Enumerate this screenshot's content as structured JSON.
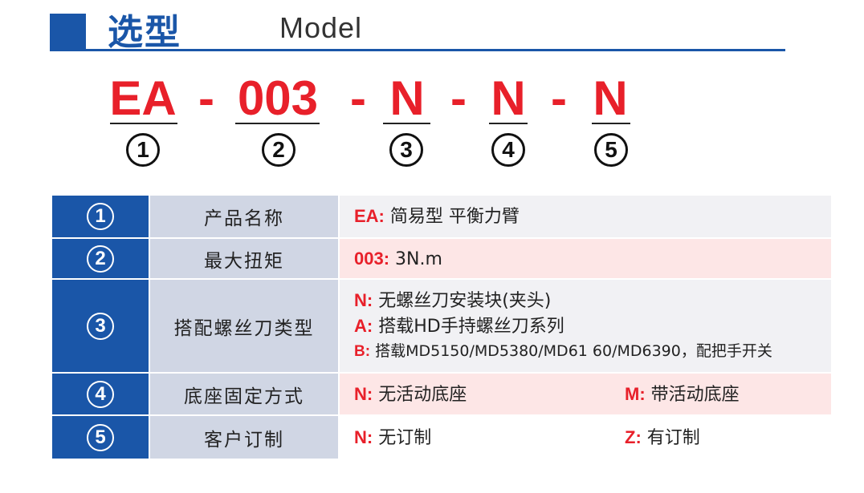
{
  "header": {
    "title": "选型",
    "subtitle": "Model",
    "accent": "#1a56a8"
  },
  "code": {
    "segments": [
      "EA",
      "003",
      "N",
      "N",
      "N"
    ],
    "separator": "-",
    "numbers": [
      "1",
      "2",
      "3",
      "4",
      "5"
    ],
    "color": "#e8202a"
  },
  "table": {
    "rows": [
      {
        "num": "1",
        "label": "产品名称",
        "options": [
          {
            "key": "EA:",
            "text": "简易型 平衡力臂"
          }
        ]
      },
      {
        "num": "2",
        "label": "最大扭矩",
        "options": [
          {
            "key": "003:",
            "text": "3N.m"
          }
        ]
      },
      {
        "num": "3",
        "label": "搭配螺丝刀类型",
        "options": [
          {
            "key": "N:",
            "text": "无螺丝刀安装块(夹头)"
          },
          {
            "key": "A:",
            "text": "搭载HD手持螺丝刀系列"
          },
          {
            "key": "B:",
            "text": "搭载MD5150/MD5380/MD61 60/MD6390，配把手开关"
          }
        ]
      },
      {
        "num": "4",
        "label": "底座固定方式",
        "options": [
          {
            "key": "N:",
            "text": "无活动底座"
          },
          {
            "key": "M:",
            "text": "带活动底座"
          }
        ]
      },
      {
        "num": "5",
        "label": "客户订制",
        "options": [
          {
            "key": "N:",
            "text": "无订制"
          },
          {
            "key": "Z:",
            "text": "有订制"
          }
        ]
      }
    ]
  }
}
